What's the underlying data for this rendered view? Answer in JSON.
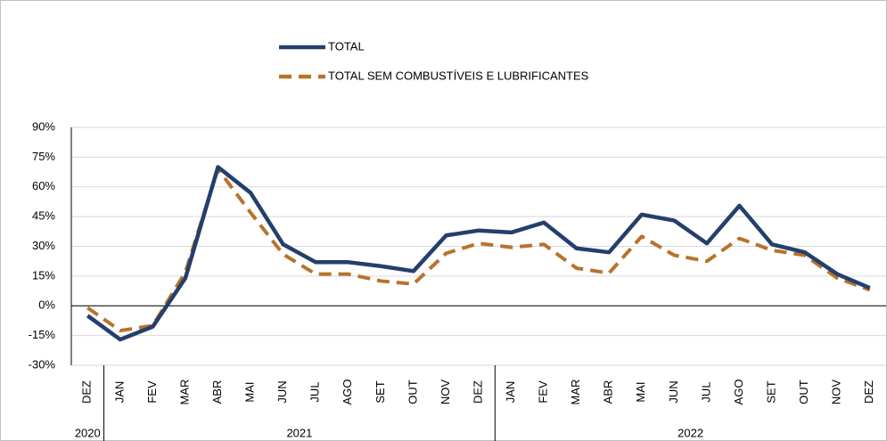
{
  "chart_data": {
    "type": "line",
    "categories": [
      "DEZ",
      "JAN",
      "FEV",
      "MAR",
      "ABR",
      "MAI",
      "JUN",
      "JUL",
      "AGO",
      "SET",
      "OUT",
      "NOV",
      "DEZ",
      "JAN",
      "FEV",
      "MAR",
      "ABR",
      "MAI",
      "JUN",
      "JUL",
      "AGO",
      "SET",
      "OUT",
      "NOV",
      "DEZ"
    ],
    "x_groups": [
      {
        "label": "2020",
        "span": 1
      },
      {
        "label": "2021",
        "span": 12
      },
      {
        "label": "2022",
        "span": 12
      }
    ],
    "series": [
      {
        "name": "TOTAL",
        "color": "#243f6b",
        "dashed": false,
        "values": [
          -5,
          -17,
          -10.5,
          14,
          70,
          57,
          31,
          22,
          22,
          20,
          17.5,
          35.5,
          38,
          37,
          42,
          29,
          27,
          46,
          43,
          31.5,
          50.5,
          31,
          27,
          16,
          9
        ]
      },
      {
        "name": "TOTAL SEM COMBUSTÍVEIS E LUBRIFICANTES",
        "color": "#b8732a",
        "dashed": true,
        "values": [
          -1,
          -12.5,
          -10,
          17,
          69,
          47,
          26,
          16,
          16,
          12.5,
          11,
          26.5,
          31.5,
          29.5,
          31,
          19,
          16.5,
          35,
          25.5,
          22.5,
          34,
          28,
          25.5,
          14,
          8
        ]
      }
    ],
    "ylim": [
      -30,
      90
    ],
    "yticks": [
      {
        "value": -30,
        "label": "-30%"
      },
      {
        "value": -15,
        "label": "-15%"
      },
      {
        "value": 0,
        "label": "0%"
      },
      {
        "value": 15,
        "label": "15%"
      },
      {
        "value": 30,
        "label": "30%"
      },
      {
        "value": 45,
        "label": "45%"
      },
      {
        "value": 60,
        "label": "60%"
      },
      {
        "value": 75,
        "label": "75%"
      },
      {
        "value": 90,
        "label": "90%"
      }
    ],
    "grid": true,
    "legend": "top"
  }
}
